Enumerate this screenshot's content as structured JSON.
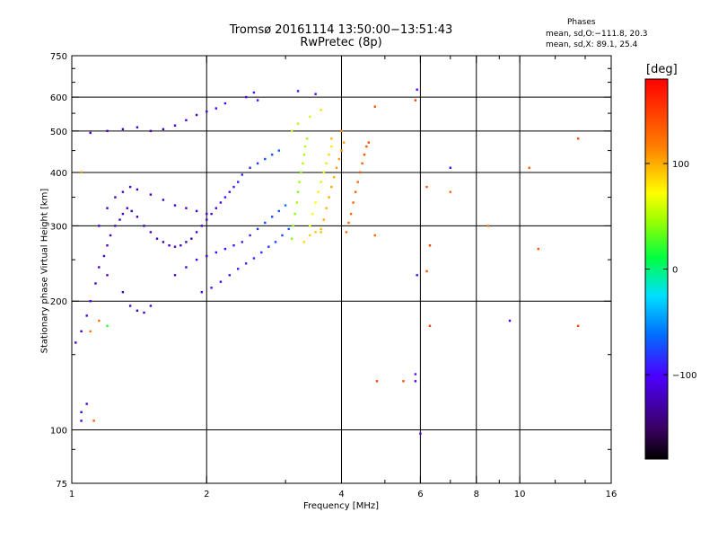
{
  "header": {
    "title_line1": "Tromsø 20161114 13:50:00−13:51:43",
    "title_line2": "RwPretec (8p)",
    "stats_heading": "Phases",
    "stats_o": "mean, sd,O:−111.8, 20.3",
    "stats_x": "mean, sd,X:  89.1, 25.4"
  },
  "chart_data": {
    "type": "scatter",
    "title": "Tromsø 20161114 13:50:00−13:51:43",
    "subtitle": "RwPretec (8p)",
    "xlabel": "Frequency [MHz]",
    "ylabel": "Stationary phase Virtual Height [km]",
    "x_scale": "log",
    "y_scale": "log",
    "xlim": [
      1,
      16
    ],
    "ylim": [
      75,
      750
    ],
    "x_ticks": [
      1,
      2,
      4,
      6,
      8,
      10,
      16
    ],
    "x_tick_labels": [
      "1",
      "2",
      "4",
      "6",
      "8",
      "10",
      "16"
    ],
    "x_minor_ticks": [
      3,
      5,
      7,
      9,
      12,
      14
    ],
    "y_ticks": [
      75,
      100,
      200,
      300,
      400,
      500,
      600,
      750
    ],
    "y_tick_labels": [
      "75",
      "100",
      "200",
      "300",
      "400",
      "500",
      "600",
      "750"
    ],
    "y_minor_ticks": [
      90,
      150,
      250,
      350,
      450,
      550,
      650,
      700
    ],
    "grid": true,
    "colorbar": {
      "label": "[deg]",
      "range": [
        -180,
        180
      ],
      "ticks": [
        100,
        0,
        -100
      ],
      "tick_labels": [
        "100",
        "0",
        "−100"
      ]
    },
    "series": [
      {
        "name": "O",
        "points": [
          [
            1.02,
            160,
            -120
          ],
          [
            1.05,
            170,
            -115
          ],
          [
            1.08,
            185,
            -110
          ],
          [
            1.1,
            200,
            -105
          ],
          [
            1.13,
            220,
            -120
          ],
          [
            1.15,
            240,
            -125
          ],
          [
            1.18,
            255,
            -115
          ],
          [
            1.2,
            270,
            -118
          ],
          [
            1.22,
            285,
            -122
          ],
          [
            1.25,
            300,
            -120
          ],
          [
            1.28,
            310,
            -125
          ],
          [
            1.3,
            320,
            -118
          ],
          [
            1.33,
            330,
            -112
          ],
          [
            1.36,
            325,
            -120
          ],
          [
            1.4,
            315,
            -126
          ],
          [
            1.45,
            300,
            -124
          ],
          [
            1.5,
            290,
            -118
          ],
          [
            1.55,
            280,
            -122
          ],
          [
            1.6,
            275,
            -125
          ],
          [
            1.65,
            270,
            -120
          ],
          [
            1.7,
            268,
            -118
          ],
          [
            1.75,
            270,
            -122
          ],
          [
            1.8,
            275,
            -128
          ],
          [
            1.85,
            280,
            -124
          ],
          [
            1.9,
            290,
            -118
          ],
          [
            1.95,
            300,
            -115
          ],
          [
            2.0,
            310,
            -112
          ],
          [
            2.05,
            320,
            -110
          ],
          [
            2.1,
            330,
            -105
          ],
          [
            2.15,
            340,
            -100
          ],
          [
            2.2,
            350,
            -98
          ],
          [
            2.25,
            360,
            -95
          ],
          [
            2.3,
            370,
            -92
          ],
          [
            2.35,
            380,
            -90
          ],
          [
            2.4,
            395,
            -88
          ],
          [
            2.5,
            410,
            -85
          ],
          [
            2.6,
            420,
            -80
          ],
          [
            2.7,
            430,
            -75
          ],
          [
            2.8,
            440,
            -70
          ],
          [
            2.9,
            450,
            -68
          ],
          [
            1.15,
            300,
            -118
          ],
          [
            1.2,
            330,
            -120
          ],
          [
            1.25,
            350,
            -122
          ],
          [
            1.3,
            360,
            -118
          ],
          [
            1.35,
            370,
            -120
          ],
          [
            1.4,
            365,
            -124
          ],
          [
            1.5,
            355,
            -120
          ],
          [
            1.6,
            345,
            -122
          ],
          [
            1.7,
            335,
            -118
          ],
          [
            1.8,
            330,
            -120
          ],
          [
            1.9,
            325,
            -115
          ],
          [
            2.0,
            320,
            -110
          ],
          [
            1.1,
            495,
            -120
          ],
          [
            1.2,
            500,
            -122
          ],
          [
            1.3,
            505,
            -118
          ],
          [
            1.4,
            510,
            -120
          ],
          [
            1.5,
            500,
            -124
          ],
          [
            1.6,
            505,
            -118
          ],
          [
            1.7,
            515,
            -120
          ],
          [
            1.8,
            530,
            -116
          ],
          [
            1.9,
            545,
            -112
          ],
          [
            2.0,
            555,
            -108
          ],
          [
            2.1,
            565,
            -104
          ],
          [
            2.2,
            580,
            -100
          ],
          [
            1.35,
            195,
            -122
          ],
          [
            1.4,
            190,
            -125
          ],
          [
            1.45,
            188,
            -120
          ],
          [
            1.5,
            195,
            -118
          ],
          [
            1.3,
            210,
            -122
          ],
          [
            1.2,
            230,
            -120
          ],
          [
            1.7,
            230,
            -118
          ],
          [
            1.8,
            240,
            -115
          ],
          [
            1.9,
            250,
            -112
          ],
          [
            2.0,
            255,
            -108
          ],
          [
            2.1,
            260,
            -104
          ],
          [
            2.2,
            265,
            -100
          ],
          [
            2.3,
            270,
            -96
          ],
          [
            2.4,
            275,
            -92
          ],
          [
            2.5,
            285,
            -88
          ],
          [
            2.6,
            295,
            -84
          ],
          [
            2.7,
            305,
            -80
          ],
          [
            2.8,
            315,
            -75
          ],
          [
            2.9,
            325,
            -70
          ],
          [
            3.0,
            335,
            -60
          ],
          [
            1.95,
            210,
            -105
          ],
          [
            2.05,
            215,
            -100
          ],
          [
            2.15,
            222,
            -98
          ],
          [
            2.25,
            230,
            -95
          ],
          [
            2.35,
            238,
            -92
          ],
          [
            2.45,
            245,
            -90
          ],
          [
            2.55,
            252,
            -88
          ],
          [
            2.65,
            260,
            -85
          ],
          [
            2.75,
            268,
            -82
          ],
          [
            2.85,
            275,
            -78
          ],
          [
            2.95,
            285,
            -74
          ],
          [
            3.05,
            295,
            -68
          ],
          [
            2.45,
            600,
            -100
          ],
          [
            2.55,
            615,
            -95
          ],
          [
            2.6,
            590,
            -102
          ],
          [
            3.2,
            620,
            -98
          ],
          [
            3.5,
            610,
            -100
          ],
          [
            5.9,
            625,
            -100
          ],
          [
            5.9,
            230,
            -100
          ],
          [
            5.85,
            130,
            -100
          ],
          [
            5.85,
            135,
            -95
          ],
          [
            6.0,
            98,
            -110
          ],
          [
            9.5,
            180,
            -110
          ],
          [
            7.0,
            410,
            -100
          ],
          [
            1.05,
            110,
            -110
          ],
          [
            1.05,
            105,
            -112
          ],
          [
            1.08,
            115,
            -118
          ]
        ]
      },
      {
        "name": "X",
        "points": [
          [
            3.1,
            280,
            40
          ],
          [
            3.12,
            300,
            45
          ],
          [
            3.15,
            320,
            42
          ],
          [
            3.18,
            340,
            48
          ],
          [
            3.2,
            360,
            40
          ],
          [
            3.22,
            380,
            45
          ],
          [
            3.25,
            400,
            42
          ],
          [
            3.28,
            420,
            50
          ],
          [
            3.3,
            440,
            48
          ],
          [
            3.32,
            460,
            52
          ],
          [
            3.35,
            480,
            46
          ],
          [
            3.4,
            300,
            70
          ],
          [
            3.45,
            320,
            75
          ],
          [
            3.5,
            340,
            72
          ],
          [
            3.55,
            360,
            78
          ],
          [
            3.6,
            380,
            80
          ],
          [
            3.65,
            400,
            76
          ],
          [
            3.7,
            420,
            82
          ],
          [
            3.75,
            440,
            85
          ],
          [
            3.8,
            460,
            80
          ],
          [
            3.6,
            290,
            95
          ],
          [
            3.65,
            310,
            100
          ],
          [
            3.7,
            330,
            98
          ],
          [
            3.75,
            350,
            102
          ],
          [
            3.8,
            370,
            105
          ],
          [
            3.85,
            390,
            100
          ],
          [
            3.9,
            410,
            108
          ],
          [
            3.95,
            430,
            104
          ],
          [
            4.0,
            450,
            110
          ],
          [
            4.05,
            470,
            105
          ],
          [
            4.1,
            290,
            125
          ],
          [
            4.15,
            305,
            130
          ],
          [
            4.2,
            320,
            128
          ],
          [
            4.25,
            340,
            132
          ],
          [
            4.3,
            360,
            135
          ],
          [
            4.35,
            380,
            130
          ],
          [
            4.4,
            400,
            138
          ],
          [
            4.45,
            420,
            134
          ],
          [
            4.5,
            440,
            140
          ],
          [
            4.55,
            460,
            136
          ],
          [
            4.6,
            470,
            142
          ],
          [
            3.3,
            275,
            85
          ],
          [
            3.4,
            285,
            90
          ],
          [
            3.5,
            290,
            92
          ],
          [
            3.6,
            295,
            95
          ],
          [
            4.75,
            570,
            140
          ],
          [
            5.85,
            590,
            150
          ],
          [
            6.2,
            370,
            140
          ],
          [
            6.3,
            270,
            150
          ],
          [
            6.3,
            175,
            150
          ],
          [
            4.8,
            130,
            145
          ],
          [
            4.75,
            285,
            130
          ],
          [
            5.5,
            130,
            140
          ],
          [
            7.0,
            360,
            130
          ],
          [
            8.5,
            300,
            120
          ],
          [
            10.5,
            410,
            135
          ],
          [
            11.0,
            265,
            140
          ],
          [
            13.5,
            480,
            145
          ],
          [
            13.5,
            175,
            145
          ],
          [
            6.2,
            235,
            140
          ],
          [
            1.05,
            400,
            110
          ],
          [
            1.12,
            105,
            135
          ],
          [
            1.1,
            170,
            120
          ],
          [
            1.15,
            180,
            125
          ],
          [
            1.2,
            175,
            20
          ],
          [
            3.1,
            500,
            55
          ],
          [
            3.2,
            520,
            52
          ],
          [
            3.4,
            540,
            60
          ],
          [
            3.6,
            560,
            85
          ],
          [
            3.8,
            480,
            95
          ],
          [
            4.0,
            500,
            112
          ]
        ]
      }
    ]
  }
}
